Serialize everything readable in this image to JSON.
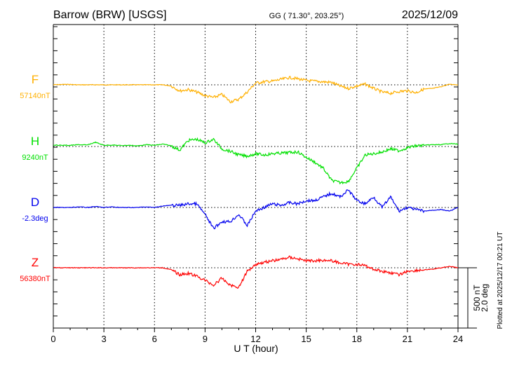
{
  "header": {
    "station": "Barrow (BRW)  [USGS]",
    "coords": "GG ( 71.30°, 203.25°)",
    "date": "2025/12/09"
  },
  "footer": {
    "plotted": "Plotted at 2025/12/17 00:21 UT",
    "scale_nt": "500 nT",
    "scale_deg": "2.0 deg"
  },
  "chart_data": {
    "type": "line",
    "title": "Barrow (BRW)  [USGS]",
    "xlabel": "U T (hour)",
    "xlim": [
      0,
      24
    ],
    "xticks": [
      "0",
      "3",
      "6",
      "9",
      "12",
      "15",
      "18",
      "21",
      "24"
    ],
    "grid": true,
    "scale": {
      "nT_per_bar": 500,
      "deg_per_bar": 2.0
    },
    "x": [
      0,
      0.5,
      1,
      1.5,
      2,
      2.5,
      3,
      3.5,
      4,
      4.5,
      5,
      5.5,
      6,
      6.5,
      7,
      7.5,
      8,
      8.5,
      9,
      9.5,
      10,
      10.5,
      11,
      11.5,
      12,
      12.5,
      13,
      13.5,
      14,
      14.5,
      15,
      15.5,
      16,
      16.5,
      17,
      17.5,
      18,
      18.5,
      19,
      19.5,
      20,
      20.5,
      21,
      21.5,
      22,
      22.5,
      23,
      23.5,
      24
    ],
    "series": [
      {
        "name": "F",
        "baseline_label": "57140nT",
        "unit": "nT",
        "color": "#ffb000",
        "values": [
          0,
          3,
          3,
          0,
          0,
          0,
          0,
          0,
          0,
          0,
          0,
          0,
          0,
          0,
          -10,
          -50,
          -40,
          -60,
          -90,
          -105,
          -80,
          -140,
          -120,
          -60,
          15,
          25,
          30,
          45,
          60,
          50,
          35,
          30,
          25,
          20,
          -10,
          -30,
          -10,
          5,
          -30,
          -60,
          -70,
          -55,
          -50,
          -65,
          -35,
          -30,
          -15,
          5,
          0
        ]
      },
      {
        "name": "H",
        "baseline_label": "9240nT",
        "unit": "nT",
        "color": "#00e000",
        "values": [
          12,
          10,
          10,
          15,
          12,
          35,
          10,
          12,
          8,
          10,
          5,
          15,
          10,
          20,
          5,
          -30,
          50,
          60,
          30,
          60,
          -20,
          -40,
          -70,
          -80,
          -60,
          -70,
          -60,
          -55,
          -50,
          -45,
          -90,
          -130,
          -180,
          -280,
          -300,
          -290,
          -180,
          -70,
          -60,
          -45,
          -20,
          -35,
          -10,
          5,
          10,
          15,
          15,
          25,
          20
        ]
      },
      {
        "name": "D",
        "baseline_label": "-2.3deg",
        "unit": "deg",
        "color": "#0000ee",
        "values": [
          0,
          0,
          0,
          0.02,
          0,
          0.03,
          0,
          0.02,
          0,
          0,
          0,
          0.02,
          0,
          0.05,
          0.07,
          0.07,
          0.12,
          0.12,
          -0.23,
          -0.7,
          -0.47,
          -0.47,
          -0.23,
          -0.6,
          -0.12,
          0,
          0.12,
          0.07,
          0.16,
          0.12,
          0.23,
          0.23,
          0.35,
          0.47,
          0.35,
          0.58,
          0.23,
          0.12,
          0.35,
          0,
          0.35,
          -0.12,
          0,
          -0.07,
          -0.12,
          -0.09,
          -0.07,
          -0.12,
          0
        ]
      },
      {
        "name": "Z",
        "baseline_label": "56380nT",
        "unit": "nT",
        "color": "#ff0000",
        "values": [
          0,
          0,
          0,
          0,
          0,
          0,
          0,
          0,
          0,
          0,
          0,
          0,
          0,
          0,
          -17,
          -58,
          -46,
          -70,
          -104,
          -145,
          -87,
          -145,
          -162,
          -29,
          29,
          46,
          58,
          70,
          87,
          75,
          58,
          58,
          64,
          58,
          41,
          29,
          29,
          17,
          -12,
          -29,
          -41,
          -58,
          -29,
          -23,
          -17,
          -12,
          0,
          12,
          0
        ]
      }
    ]
  }
}
